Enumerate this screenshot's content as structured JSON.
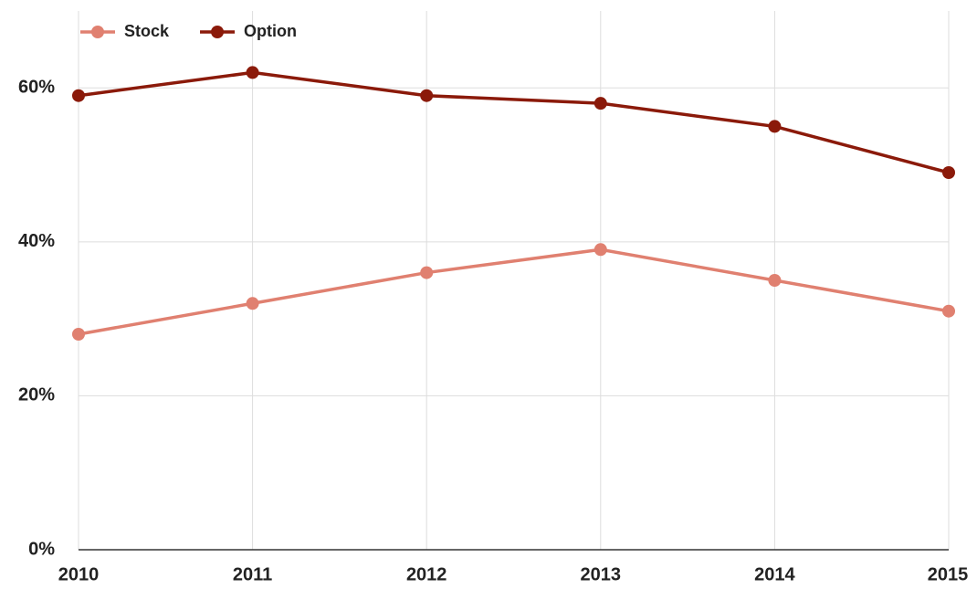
{
  "chart_data": {
    "type": "line",
    "x": [
      2010,
      2011,
      2012,
      2013,
      2014,
      2015
    ],
    "xlim": [
      2010,
      2015
    ],
    "xticks": [
      2010,
      2011,
      2012,
      2013,
      2014,
      2015
    ],
    "ylim": [
      0,
      70
    ],
    "yticks": [
      {
        "value": 0,
        "label": "0%"
      },
      {
        "value": 20,
        "label": "20%"
      },
      {
        "value": 40,
        "label": "40%"
      },
      {
        "value": 60,
        "label": "60%"
      }
    ],
    "grid": true,
    "legend": "top-left",
    "series": [
      {
        "name": "Stock",
        "color": "#e08070",
        "values": [
          28,
          32,
          36,
          39,
          35,
          31
        ]
      },
      {
        "name": "Option",
        "color": "#8b1a0a",
        "values": [
          59,
          62,
          59,
          58,
          55,
          49
        ]
      }
    ]
  }
}
